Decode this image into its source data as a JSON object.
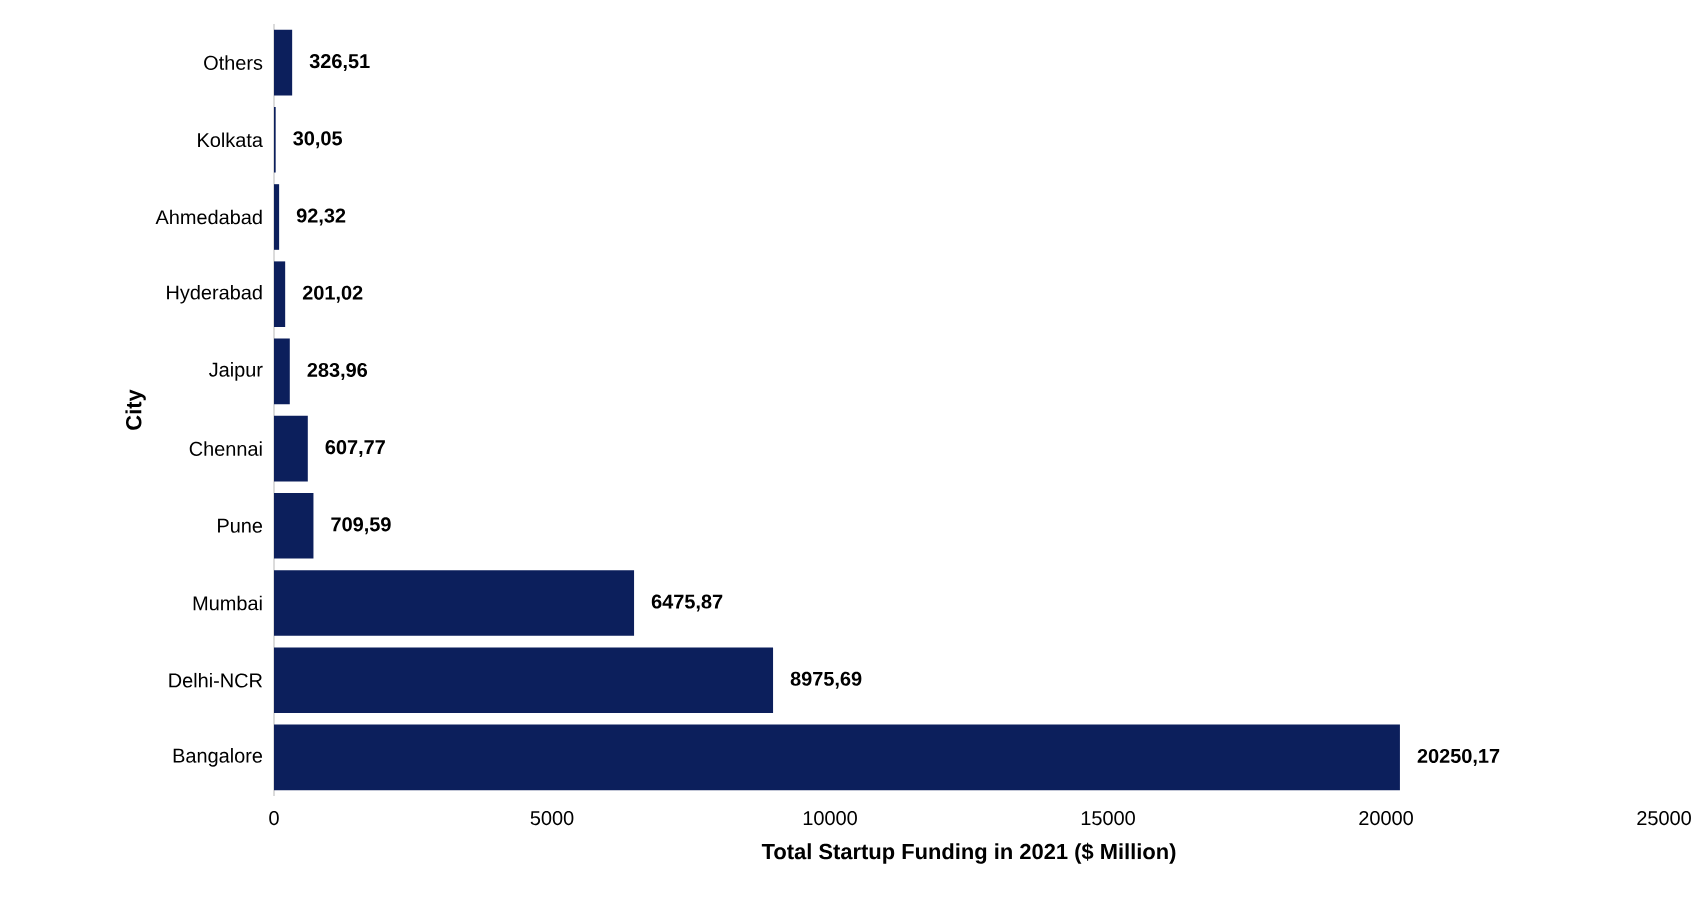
{
  "chart_data": {
    "type": "bar",
    "orientation": "horizontal",
    "xlabel": "Total Startup Funding in 2021 ($ Million)",
    "ylabel": "City",
    "categories": [
      "Others",
      "Kolkata",
      "Ahmedabad",
      "Hyderabad",
      "Jaipur",
      "Chennai",
      "Pune",
      "Mumbai",
      "Delhi-NCR",
      "Bangalore"
    ],
    "values": [
      326.51,
      30.05,
      92.32,
      201.02,
      283.96,
      607.77,
      709.59,
      6475.87,
      8975.69,
      20250.17
    ],
    "value_labels": [
      "326,51",
      "30,05",
      "92,32",
      "201,02",
      "283,96",
      "607,77",
      "709,59",
      "6475,87",
      "8975,69",
      "20250,17"
    ],
    "color": "#0c1f5c",
    "xlim": [
      0,
      25000
    ],
    "xticks": [
      0,
      5000,
      10000,
      15000,
      20000,
      25000
    ]
  }
}
